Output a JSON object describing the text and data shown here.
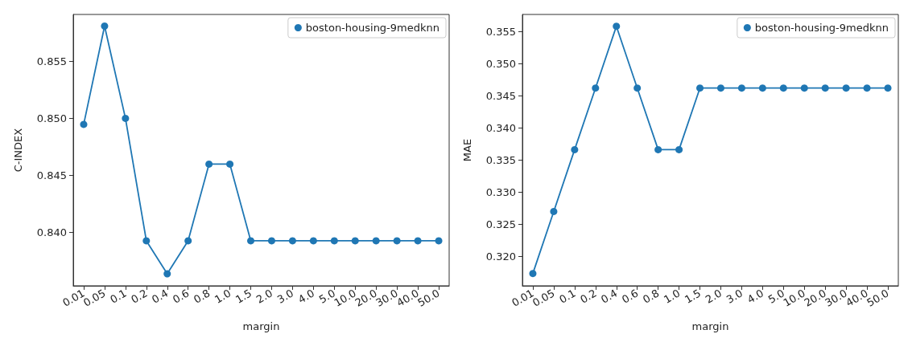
{
  "chart_data": [
    {
      "type": "line",
      "xlabel": "margin",
      "ylabel": "C-INDEX",
      "categories": [
        "0.01",
        "0.05",
        "0.1",
        "0.2",
        "0.4",
        "0.6",
        "0.8",
        "1.0",
        "1.5",
        "2.0",
        "3.0",
        "4.0",
        "5.0",
        "10.0",
        "20.0",
        "30.0",
        "40.0",
        "50.0"
      ],
      "series": [
        {
          "name": "boston-housing-9medknn",
          "color": "#1f77b4",
          "values": [
            0.84947,
            0.85809,
            0.85,
            0.83926,
            0.83636,
            0.83926,
            0.84598,
            0.84598,
            0.83926,
            0.83926,
            0.83926,
            0.83926,
            0.83926,
            0.83926,
            0.83926,
            0.83926,
            0.83926,
            0.83926
          ]
        }
      ],
      "ylim": [
        0.83531,
        0.85911
      ],
      "yticks": [
        {
          "value": 0.84,
          "label": "0.840"
        },
        {
          "value": 0.845,
          "label": "0.845"
        },
        {
          "value": 0.85,
          "label": "0.850"
        },
        {
          "value": 0.855,
          "label": "0.855"
        }
      ],
      "grid": false,
      "legend": "top right",
      "marker": "circle",
      "line_style": "solid"
    },
    {
      "type": "line",
      "xlabel": "margin",
      "ylabel": "MAE",
      "categories": [
        "0.01",
        "0.05",
        "0.1",
        "0.2",
        "0.4",
        "0.6",
        "0.8",
        "1.0",
        "1.5",
        "2.0",
        "3.0",
        "4.0",
        "5.0",
        "10.0",
        "20.0",
        "30.0",
        "40.0",
        "50.0"
      ],
      "series": [
        {
          "name": "boston-housing-9medknn",
          "color": "#1f77b4",
          "values": [
            0.31732,
            0.32696,
            0.33659,
            0.34617,
            0.35579,
            0.34617,
            0.33659,
            0.33659,
            0.34617,
            0.34617,
            0.34617,
            0.34617,
            0.34617,
            0.34617,
            0.34617,
            0.34617,
            0.34617,
            0.34617
          ]
        }
      ],
      "ylim": [
        0.3154,
        0.35763
      ],
      "yticks": [
        {
          "value": 0.32,
          "label": "0.320"
        },
        {
          "value": 0.325,
          "label": "0.325"
        },
        {
          "value": 0.33,
          "label": "0.330"
        },
        {
          "value": 0.335,
          "label": "0.335"
        },
        {
          "value": 0.34,
          "label": "0.340"
        },
        {
          "value": 0.345,
          "label": "0.345"
        },
        {
          "value": 0.35,
          "label": "0.350"
        },
        {
          "value": 0.355,
          "label": "0.355"
        }
      ],
      "grid": false,
      "legend": "top right",
      "marker": "circle",
      "line_style": "solid"
    }
  ]
}
